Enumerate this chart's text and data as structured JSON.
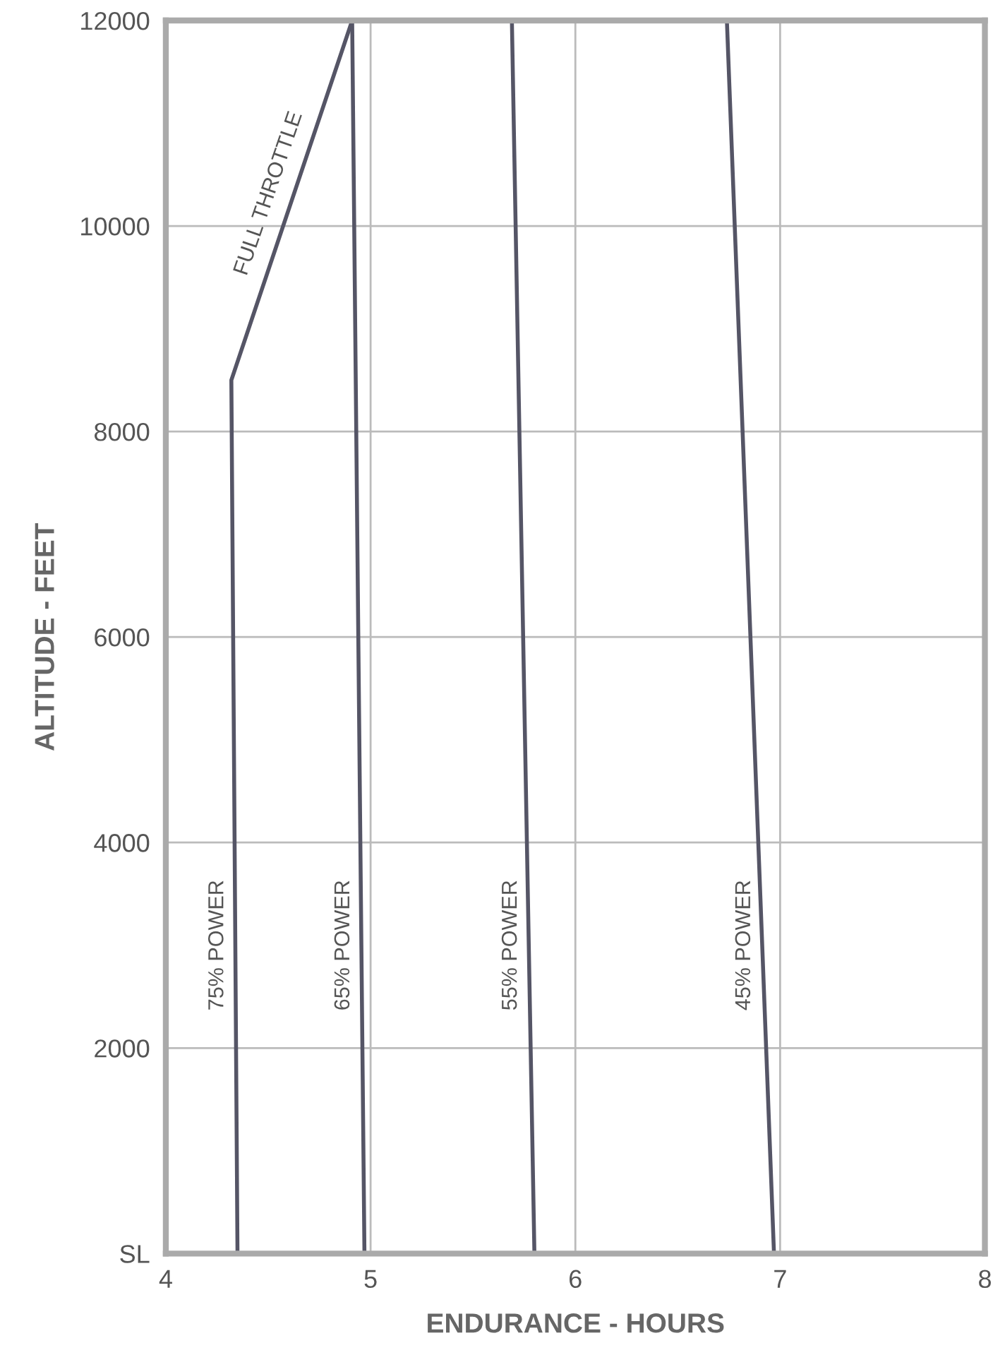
{
  "chart_data": {
    "type": "line",
    "xlabel": "ENDURANCE - HOURS",
    "ylabel": "ALTITUDE - FEET",
    "xlim": [
      4,
      8
    ],
    "xticks": [
      4,
      5,
      6,
      7,
      8
    ],
    "ylim": [
      0,
      12000
    ],
    "yticks": [
      {
        "value": 0,
        "label": "SL"
      },
      2000,
      4000,
      6000,
      8000,
      10000,
      12000
    ],
    "annotations": [
      {
        "text": "FULL THROTTLE",
        "x": 4.6,
        "y": 10200
      }
    ],
    "grid": true,
    "line_style": "solid",
    "marker": "none",
    "series": [
      {
        "name": "75% POWER",
        "color": "#555566",
        "x": [
          4.35,
          4.32,
          4.91
        ],
        "values": [
          0,
          8500,
          12000
        ]
      },
      {
        "name": "65% POWER",
        "color": "#555566",
        "x": [
          4.97,
          4.91
        ],
        "values": [
          0,
          12000
        ]
      },
      {
        "name": "55% POWER",
        "color": "#555566",
        "x": [
          5.8,
          5.69
        ],
        "values": [
          0,
          12000
        ]
      },
      {
        "name": "45% POWER",
        "color": "#555566",
        "x": [
          6.97,
          6.74
        ],
        "values": [
          0,
          12000
        ]
      }
    ]
  }
}
